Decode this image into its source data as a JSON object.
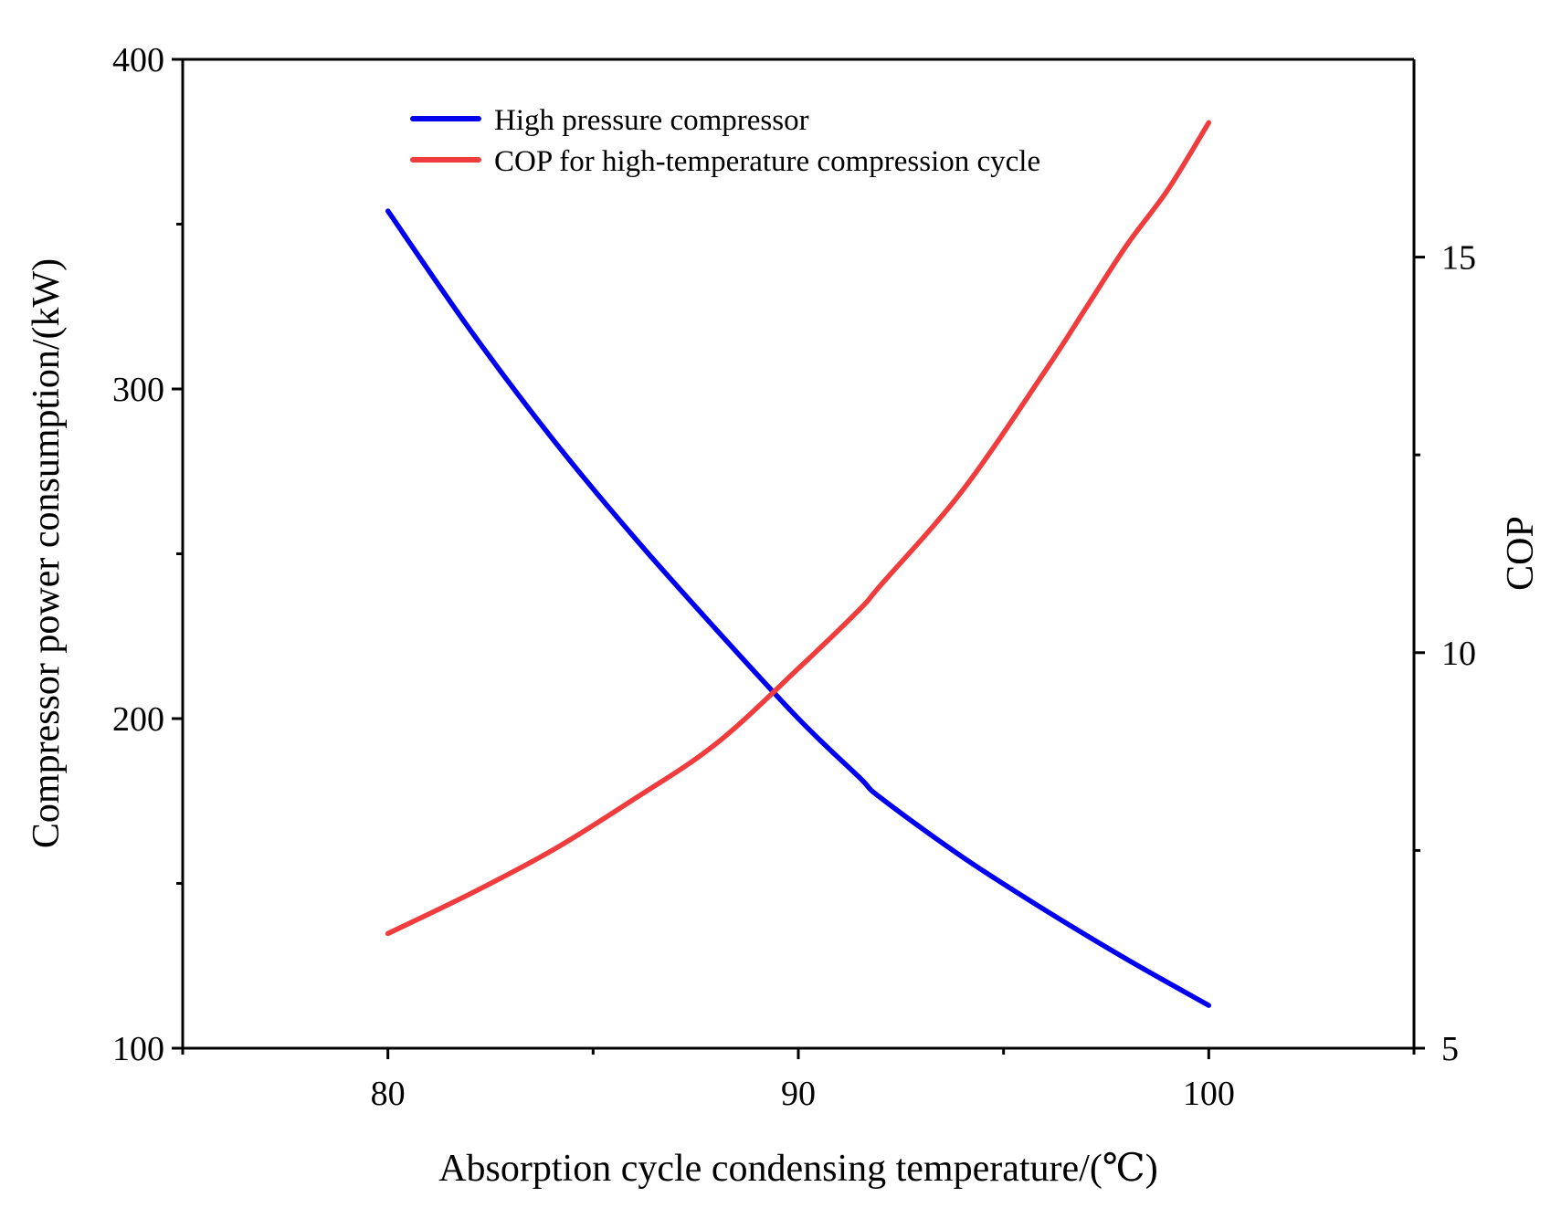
{
  "chart_data": {
    "type": "line",
    "title": "",
    "xlabel": "Absorption cycle condensing temperature/(℃)",
    "ylabel": "Compressor power consumption/(kW)",
    "y2label": "COP",
    "xlim": [
      75,
      105
    ],
    "ylim": [
      100,
      400
    ],
    "y2lim": [
      5,
      17.5
    ],
    "x_ticks": [
      {
        "value": 80,
        "label": "80"
      },
      {
        "value": 90,
        "label": "90"
      },
      {
        "value": 100,
        "label": "100"
      }
    ],
    "x_minor_ticks": [
      75,
      85,
      95,
      105
    ],
    "y_ticks": [
      {
        "value": 100,
        "label": "100"
      },
      {
        "value": 200,
        "label": "200"
      },
      {
        "value": 300,
        "label": "300"
      },
      {
        "value": 400,
        "label": "400"
      }
    ],
    "y_minor_ticks": [
      150,
      250,
      350
    ],
    "y2_ticks": [
      {
        "value": 5,
        "label": "5"
      },
      {
        "value": 10,
        "label": "10"
      },
      {
        "value": 15,
        "label": "15"
      }
    ],
    "y2_minor_ticks": [
      7.5,
      12.5
    ],
    "grid": false,
    "legend_position": "top-left",
    "series": [
      {
        "name": "High pressure compressor",
        "axis": "left",
        "color": "#0000ee",
        "x": [
          80,
          82,
          84,
          86,
          88,
          90,
          91.5,
          92,
          94,
          96,
          98,
          100
        ],
        "y": [
          354,
          318,
          285,
          255,
          227,
          200,
          182,
          176,
          158,
          142,
          127,
          113
        ]
      },
      {
        "name": "COP for high-temperature compression cycle",
        "axis": "right",
        "color": "#f03c3c",
        "x": [
          80,
          82,
          84,
          86,
          88,
          90,
          91.5,
          92,
          94,
          96,
          97,
          98,
          99,
          100
        ],
        "y": [
          6.45,
          6.95,
          7.5,
          8.15,
          8.85,
          9.8,
          10.55,
          10.85,
          12.05,
          13.55,
          14.35,
          15.15,
          15.85,
          16.7
        ]
      }
    ]
  }
}
